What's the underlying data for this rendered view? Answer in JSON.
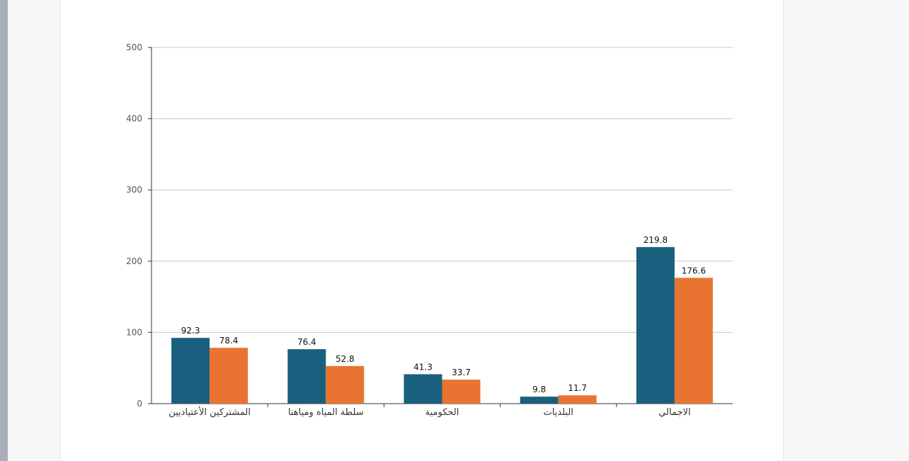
{
  "chart_data": {
    "type": "bar",
    "categories": [
      "المشتركين الأعتياديين",
      "سلطة المياه ومياهنا",
      "الحكومية",
      "البلديات",
      "الاجمالي"
    ],
    "series": [
      {
        "name": "series-1",
        "color": "#19607f",
        "values": [
          92.3,
          76.4,
          41.3,
          9.8,
          219.8
        ]
      },
      {
        "name": "series-2",
        "color": "#e97432",
        "values": [
          78.4,
          52.8,
          33.7,
          11.7,
          176.6
        ]
      }
    ],
    "value_labels": [
      [
        "92.3",
        "76.4",
        "41.3",
        "9.8",
        "219.8"
      ],
      [
        "78.4",
        "52.8",
        "33.7",
        "11.7",
        "176.6"
      ]
    ],
    "yticks": [
      "0",
      "100",
      "200",
      "300",
      "400",
      "500"
    ],
    "ylim": [
      0,
      500
    ],
    "grid": true,
    "title": "",
    "xlabel": "",
    "ylabel": ""
  }
}
